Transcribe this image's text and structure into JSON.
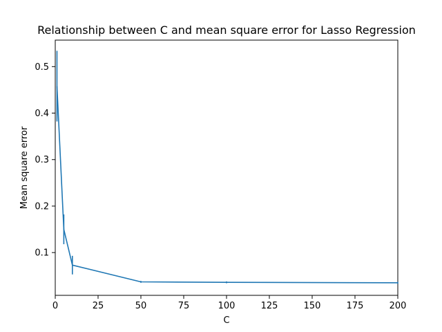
{
  "chart_data": {
    "type": "line",
    "title": "Relationship between C and mean square error for Lasso Regression",
    "xlabel": "C",
    "ylabel": "Mean square error",
    "xlim": [
      0,
      200
    ],
    "ylim": [
      0.008,
      0.557
    ],
    "xticks": [
      0,
      25,
      50,
      75,
      100,
      125,
      150,
      175,
      200
    ],
    "yticks": [
      0.1,
      0.2,
      0.3,
      0.4,
      0.5
    ],
    "grid": false,
    "legend": "none",
    "series": [
      {
        "color": "#1f77b4",
        "points": [
          {
            "x": 1,
            "y": 0.458,
            "err": 0.076
          },
          {
            "x": 5,
            "y": 0.15,
            "err": 0.032
          },
          {
            "x": 10,
            "y": 0.073,
            "err": 0.02
          },
          {
            "x": 50,
            "y": 0.037,
            "err": 0.002
          },
          {
            "x": 100,
            "y": 0.036,
            "err": 0.002
          },
          {
            "x": 200,
            "y": 0.035,
            "err": 0.002
          }
        ]
      }
    ]
  }
}
